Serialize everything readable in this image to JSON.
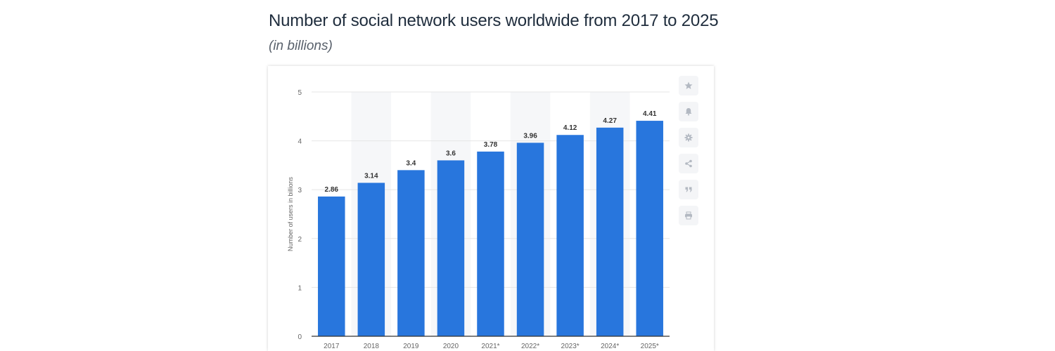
{
  "header": {
    "title": "Number of social network users worldwide from 2017 to 2025",
    "subtitle": "(in billions)"
  },
  "toolbar": {
    "buttons": [
      {
        "icon": "star-icon"
      },
      {
        "icon": "bell-icon"
      },
      {
        "icon": "gear-icon"
      },
      {
        "icon": "share-icon"
      },
      {
        "icon": "quote-icon"
      },
      {
        "icon": "print-icon"
      }
    ]
  },
  "colors": {
    "bar": "#2876dd",
    "grid": "#e6e6e6",
    "band": "#f6f7f9",
    "text": "#333333",
    "axis_label": "#666666"
  },
  "chart_data": {
    "type": "bar",
    "categories": [
      "2017",
      "2018",
      "2019",
      "2020",
      "2021*",
      "2022*",
      "2023*",
      "2024*",
      "2025*"
    ],
    "values": [
      2.86,
      3.14,
      3.4,
      3.6,
      3.78,
      3.96,
      4.12,
      4.27,
      4.41
    ],
    "data_labels": [
      "2.86",
      "3.14",
      "3.4",
      "3.6",
      "3.78",
      "3.96",
      "4.12",
      "4.27",
      "4.41"
    ],
    "title": "Number of social network users worldwide from 2017 to 2025",
    "subtitle": "(in billions)",
    "xlabel": "",
    "ylabel": "Number of users in billions",
    "ylim": [
      0,
      5
    ],
    "yticks": [
      "0",
      "1",
      "2",
      "3",
      "4",
      "5"
    ],
    "grid": true,
    "legend": "none"
  }
}
